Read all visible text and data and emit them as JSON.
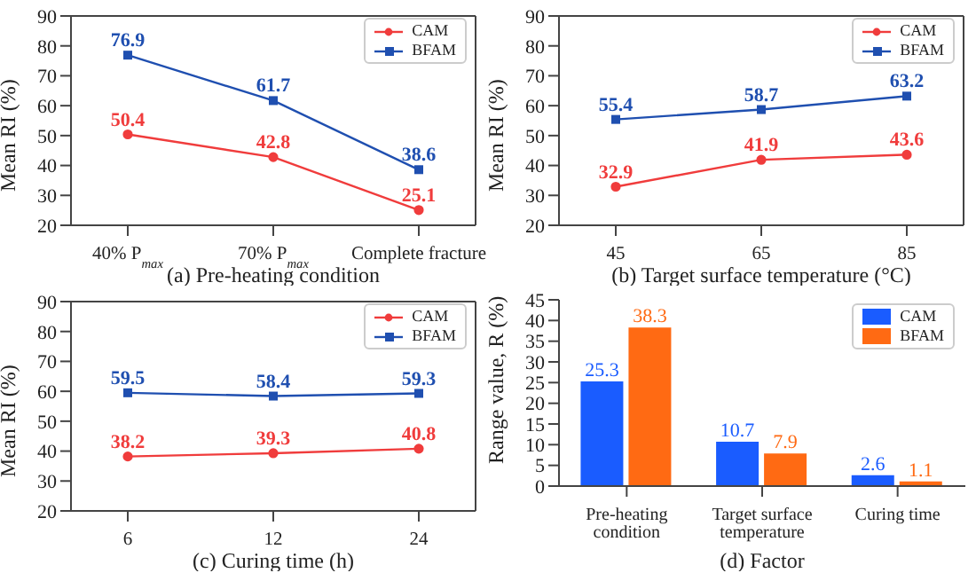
{
  "chart_data": [
    {
      "type": "line",
      "xlabel": "(a) Pre-heating condition",
      "ylabel": "Mean RI (%)",
      "categories": [
        "40% P$_{max}$",
        "70% P$_{max}$",
        "Complete fracture"
      ],
      "ylim": [
        20,
        90
      ],
      "yticks": [
        20,
        30,
        40,
        50,
        60,
        70,
        80,
        90
      ],
      "grid": false,
      "legend": "top right",
      "data_labels": true,
      "series": [
        {
          "name": "CAM",
          "color": "#f03c3c",
          "marker": "circle",
          "values": [
            50.4,
            42.8,
            25.1
          ]
        },
        {
          "name": "BFAM",
          "color": "#1f4fb0",
          "marker": "square",
          "values": [
            76.9,
            61.7,
            38.6
          ]
        }
      ]
    },
    {
      "type": "line",
      "xlabel": "(b) Target surface temperature (°C)",
      "ylabel": "Mean RI (%)",
      "categories": [
        "45",
        "65",
        "85"
      ],
      "ylim": [
        20,
        90
      ],
      "yticks": [
        20,
        30,
        40,
        50,
        60,
        70,
        80,
        90
      ],
      "grid": false,
      "legend": "top right",
      "data_labels": true,
      "series": [
        {
          "name": "CAM",
          "color": "#f03c3c",
          "marker": "circle",
          "values": [
            32.9,
            41.9,
            43.6
          ]
        },
        {
          "name": "BFAM",
          "color": "#1f4fb0",
          "marker": "square",
          "values": [
            55.4,
            58.7,
            63.2
          ]
        }
      ]
    },
    {
      "type": "line",
      "xlabel": "(c) Curing time (h)",
      "ylabel": "Mean RI (%)",
      "categories": [
        "6",
        "12",
        "24"
      ],
      "ylim": [
        20,
        90
      ],
      "yticks": [
        20,
        30,
        40,
        50,
        60,
        70,
        80,
        90
      ],
      "grid": false,
      "legend": "top right",
      "data_labels": true,
      "series": [
        {
          "name": "CAM",
          "color": "#f03c3c",
          "marker": "circle",
          "values": [
            38.2,
            39.3,
            40.8
          ]
        },
        {
          "name": "BFAM",
          "color": "#1f4fb0",
          "marker": "square",
          "values": [
            59.5,
            58.4,
            59.3
          ]
        }
      ]
    },
    {
      "type": "bar",
      "xlabel": "(d) Factor",
      "ylabel": "Range value, R (%)",
      "categories": [
        "Pre-heating condition",
        "Target surface temperature",
        "Curing time"
      ],
      "ylim": [
        0,
        45
      ],
      "yticks": [
        0,
        5,
        10,
        15,
        20,
        25,
        30,
        35,
        40,
        45
      ],
      "grid": false,
      "legend": "top right",
      "data_labels": true,
      "series": [
        {
          "name": "CAM",
          "color": "#1a5cff",
          "values": [
            25.3,
            10.7,
            2.6
          ]
        },
        {
          "name": "BFAM",
          "color": "#ff6a13",
          "values": [
            38.3,
            7.9,
            1.1
          ]
        }
      ]
    }
  ]
}
